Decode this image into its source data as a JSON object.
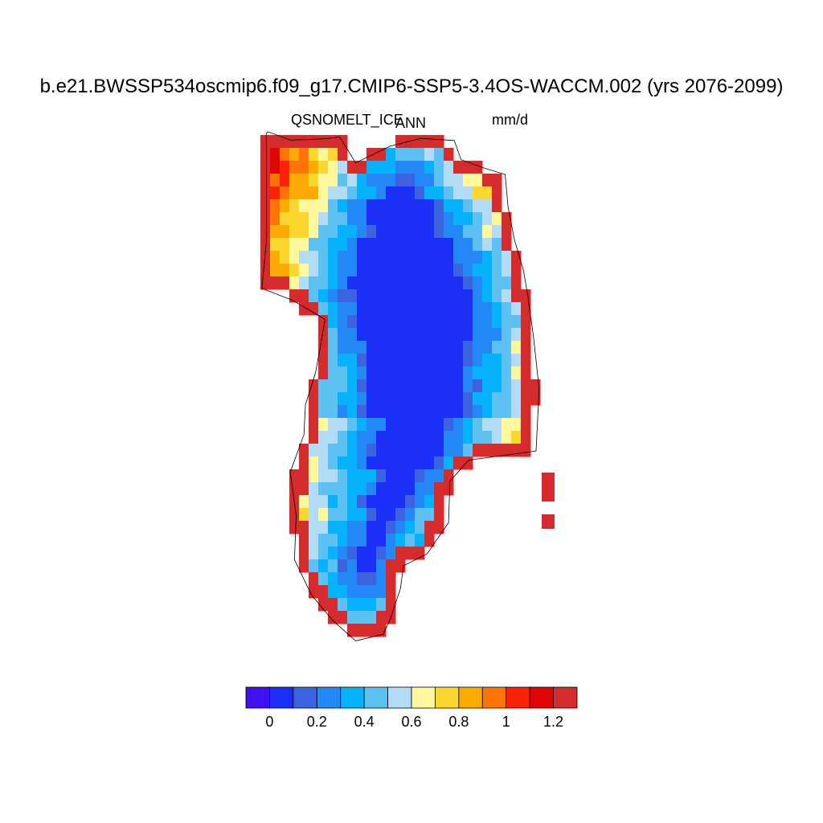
{
  "title": "b.e21.BWSSP534oscmip6.f09_g17.CMIP6-SSP5-3.4OS-WACCM.002 (yrs 2076-2099)",
  "subtitle_left": "QSNOMELT_ICE",
  "subtitle_center": "ANN",
  "subtitle_right": "mm/d",
  "colorbar": {
    "colors": [
      "#4010f0",
      "#1a2ef5",
      "#3b63e0",
      "#2388f5",
      "#05b2fb",
      "#5dc1f2",
      "#b2dcf5",
      "#fff79c",
      "#fcd730",
      "#fcab05",
      "#fc7405",
      "#fc2205",
      "#e00505",
      "#d42c2c"
    ],
    "tick_labels": [
      "0",
      "0.2",
      "0.4",
      "0.6",
      "0.8",
      "1",
      "1.2"
    ]
  },
  "map": {
    "region": "Greenland",
    "field_level_palette": "colorbar.colors"
  }
}
